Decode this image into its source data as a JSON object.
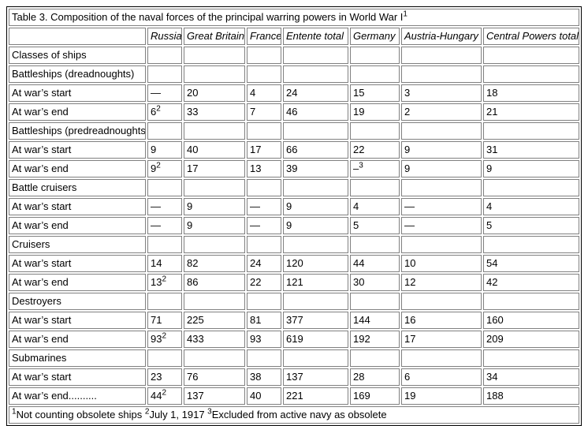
{
  "title": {
    "text": "Table 3. Composition of the naval forces of the principal warring powers in World War I",
    "sup": "1"
  },
  "columns": [
    "Russia",
    "Great Britain",
    "France",
    "Entente total",
    "Germany",
    "Austria-Hungary",
    "Central Powers total"
  ],
  "rows": [
    {
      "label": "Classes of ships",
      "values": [
        "",
        "",
        "",
        "",
        "",
        "",
        ""
      ]
    },
    {
      "label": "Battleships (dreadnoughts)",
      "values": [
        "",
        "",
        "",
        "",
        "",
        "",
        ""
      ]
    },
    {
      "label": "At war’s start",
      "values": [
        "—",
        "20",
        "4",
        "24",
        "15",
        "3",
        "18"
      ]
    },
    {
      "label": "At war’s end",
      "values": [
        "6^2",
        "33",
        "7",
        "46",
        "19",
        "2",
        "21"
      ]
    },
    {
      "label": "Battleships (predreadnoughts)",
      "values": [
        "",
        "",
        "",
        "",
        "",
        "",
        ""
      ]
    },
    {
      "label": "At war’s start",
      "values": [
        "9",
        "40",
        "17",
        "66",
        "22",
        "9",
        "31"
      ]
    },
    {
      "label": "At war’s end",
      "values": [
        "9^2",
        "17",
        "13",
        "39",
        "–^3",
        "9",
        "9"
      ]
    },
    {
      "label": "Battle cruisers",
      "values": [
        "",
        "",
        "",
        "",
        "",
        "",
        ""
      ]
    },
    {
      "label": "At war’s start",
      "values": [
        "—",
        "9",
        "—",
        "9",
        "4",
        "—",
        "4"
      ]
    },
    {
      "label": "At war’s end",
      "values": [
        "—",
        "9",
        "—",
        "9",
        "5",
        "—",
        "5"
      ]
    },
    {
      "label": "Cruisers",
      "values": [
        "",
        "",
        "",
        "",
        "",
        "",
        ""
      ]
    },
    {
      "label": "At war’s start",
      "values": [
        "14",
        "82",
        "24",
        "120",
        "44",
        "10",
        "54"
      ]
    },
    {
      "label": "At war’s end",
      "values": [
        "13^2",
        "86",
        "22",
        "121",
        "30",
        "12",
        "42"
      ]
    },
    {
      "label": "Destroyers",
      "values": [
        "",
        "",
        "",
        "",
        "",
        "",
        ""
      ]
    },
    {
      "label": "At war’s start",
      "values": [
        "71",
        "225",
        "81",
        "377",
        "144",
        "16",
        "160"
      ]
    },
    {
      "label": "At war’s end",
      "values": [
        "93^2",
        "433",
        "93",
        "619",
        "192",
        "17",
        "209"
      ]
    },
    {
      "label": "Submarines",
      "values": [
        "",
        "",
        "",
        "",
        "",
        "",
        ""
      ]
    },
    {
      "label": "At war’s start",
      "values": [
        "23",
        "76",
        "38",
        "137",
        "28",
        "6",
        "34"
      ]
    },
    {
      "label": "At war’s end..........",
      "values": [
        "44^2",
        "137",
        "40",
        "221",
        "169",
        "19",
        "188"
      ]
    }
  ],
  "footnotes": [
    {
      "sup": "1",
      "text": "Not counting obsolete ships "
    },
    {
      "sup": "2",
      "text": "July 1, 1917 "
    },
    {
      "sup": "3",
      "text": "Excluded from active navy as obsolete"
    }
  ],
  "colors": {
    "outer_border": "#000000",
    "cell_border": "#808080",
    "text": "#000000",
    "background": "#ffffff"
  }
}
